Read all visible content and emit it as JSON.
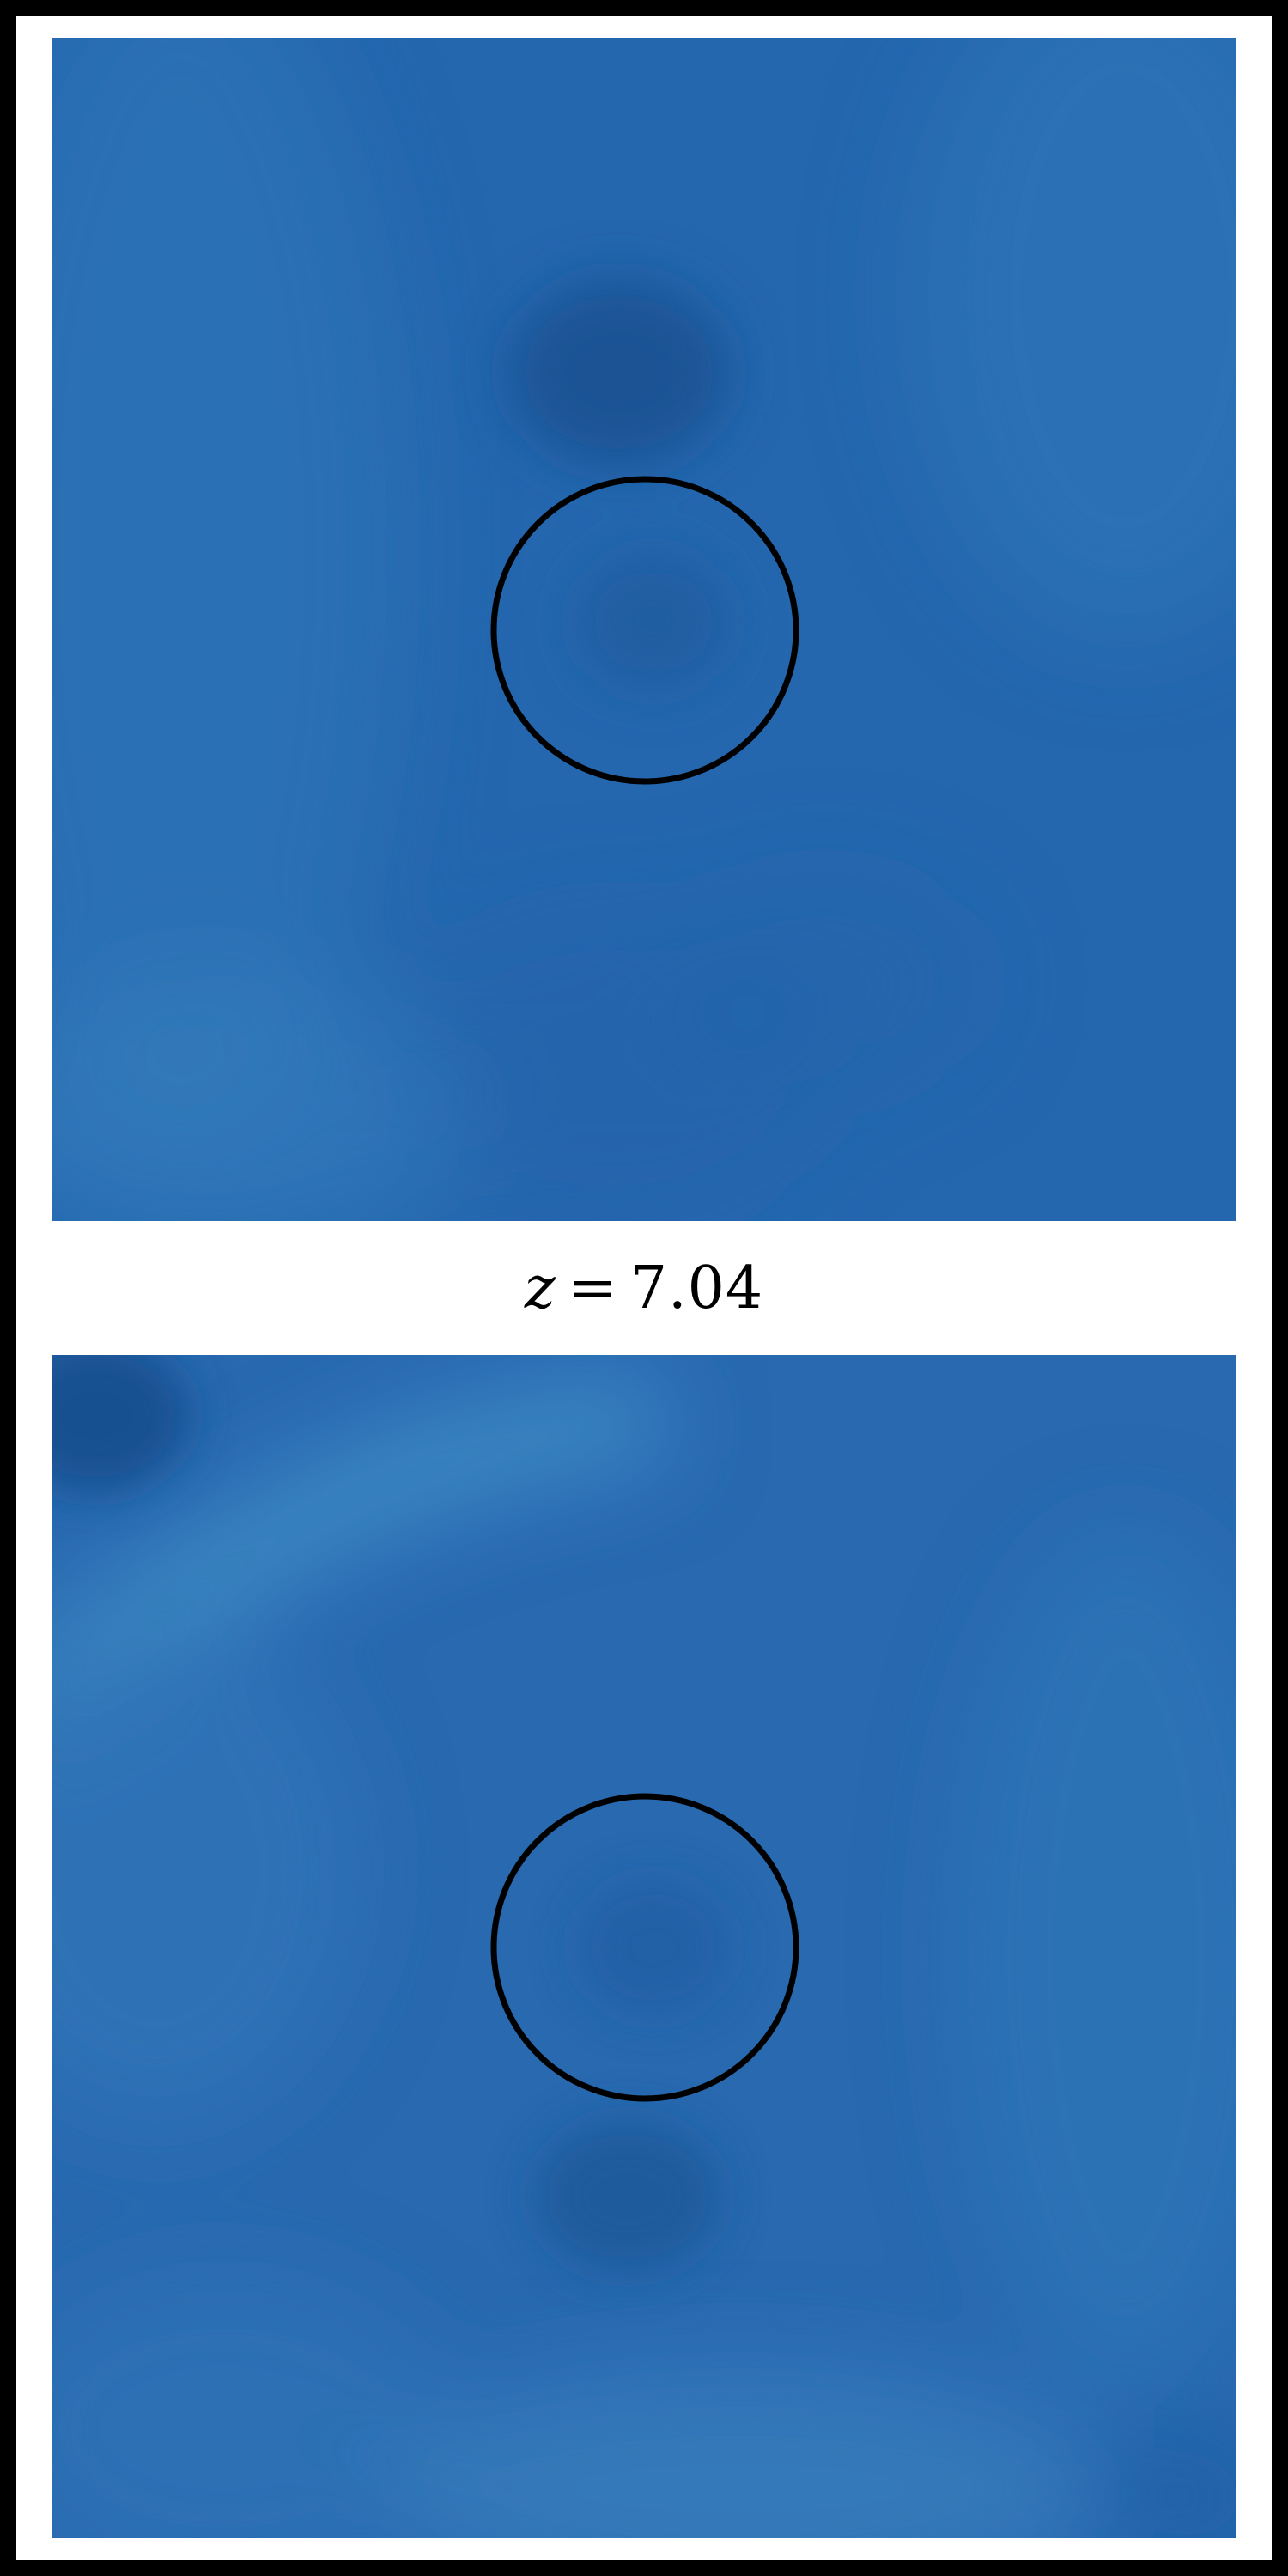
{
  "figure": {
    "redshift_label": {
      "variable": "z",
      "operator": "=",
      "value": "7.04"
    },
    "panels": [
      {
        "name": "top",
        "marker": "circle"
      },
      {
        "name": "bottom",
        "marker": "circle"
      }
    ],
    "colors": {
      "background": "#2568b0",
      "light_patch": "#3f8cc4",
      "dark_patch": "#164d8c",
      "frame": "#000000",
      "marker": "#000000"
    }
  }
}
